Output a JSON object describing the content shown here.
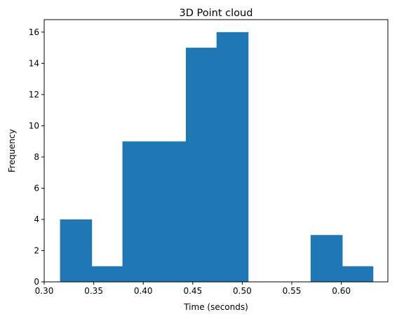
{
  "chart_data": {
    "type": "bar",
    "subtype": "histogram",
    "title": "3D Point cloud",
    "xlabel": "Time (seconds)",
    "ylabel": "Frequency",
    "xlim": [
      0.3,
      0.647
    ],
    "ylim": [
      0,
      16.8
    ],
    "x_ticks": [
      0.3,
      0.35,
      0.4,
      0.45,
      0.5,
      0.55,
      0.6
    ],
    "x_tick_labels": [
      "0.30",
      "0.35",
      "0.40",
      "0.45",
      "0.50",
      "0.55",
      "0.60"
    ],
    "y_ticks": [
      0,
      2,
      4,
      6,
      8,
      10,
      12,
      14,
      16
    ],
    "y_tick_labels": [
      "0",
      "2",
      "4",
      "6",
      "8",
      "10",
      "12",
      "14",
      "16"
    ],
    "bin_edges": [
      0.316,
      0.348,
      0.379,
      0.411,
      0.443,
      0.474,
      0.506,
      0.538,
      0.569,
      0.601,
      0.632
    ],
    "values": [
      4,
      1,
      9,
      9,
      15,
      16,
      0,
      0,
      3,
      1
    ],
    "color": "#1f77b4",
    "grid": false,
    "legend": "none"
  }
}
